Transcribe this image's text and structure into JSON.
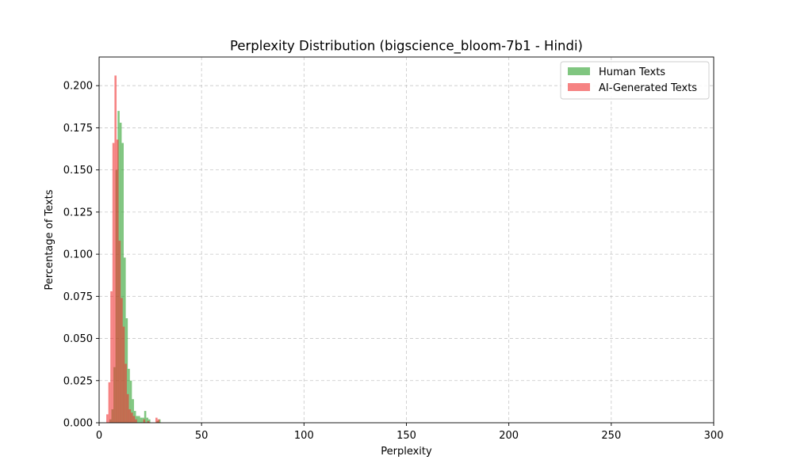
{
  "chart_data": {
    "type": "bar",
    "title": "Perplexity Distribution (bigscience_bloom-7b1 - Hindi)",
    "xlabel": "Perplexity",
    "ylabel": "Percentage of Texts",
    "xlim": [
      0,
      300
    ],
    "ylim": [
      0,
      0.217
    ],
    "xticks": [
      0,
      50,
      100,
      150,
      200,
      250,
      300
    ],
    "xtick_labels": [
      "0",
      "50",
      "100",
      "150",
      "200",
      "250",
      "300"
    ],
    "yticks": [
      0.0,
      0.025,
      0.05,
      0.075,
      0.1,
      0.125,
      0.15,
      0.175,
      0.2
    ],
    "ytick_labels": [
      "0.000",
      "0.025",
      "0.050",
      "0.075",
      "0.100",
      "0.125",
      "0.150",
      "0.175",
      "0.200"
    ],
    "grid": true,
    "legend_position": "top-right",
    "series": [
      {
        "name": "Human Texts",
        "color": "#2ca02c",
        "alpha": 0.6,
        "bins": [
          {
            "x0": 5.0,
            "x1": 6.0,
            "value": 0.002
          },
          {
            "x0": 6.0,
            "x1": 7.0,
            "value": 0.008
          },
          {
            "x0": 7.0,
            "x1": 8.0,
            "value": 0.033
          },
          {
            "x0": 8.0,
            "x1": 9.0,
            "value": 0.15
          },
          {
            "x0": 9.0,
            "x1": 10.0,
            "value": 0.185
          },
          {
            "x0": 10.0,
            "x1": 11.0,
            "value": 0.178
          },
          {
            "x0": 11.0,
            "x1": 12.0,
            "value": 0.166
          },
          {
            "x0": 12.0,
            "x1": 13.0,
            "value": 0.098
          },
          {
            "x0": 13.0,
            "x1": 14.0,
            "value": 0.062
          },
          {
            "x0": 14.0,
            "x1": 15.0,
            "value": 0.032
          },
          {
            "x0": 15.0,
            "x1": 16.0,
            "value": 0.025
          },
          {
            "x0": 16.0,
            "x1": 17.0,
            "value": 0.014
          },
          {
            "x0": 17.0,
            "x1": 18.0,
            "value": 0.007
          },
          {
            "x0": 18.0,
            "x1": 19.0,
            "value": 0.004
          },
          {
            "x0": 19.0,
            "x1": 20.0,
            "value": 0.004
          },
          {
            "x0": 20.0,
            "x1": 21.0,
            "value": 0.003
          },
          {
            "x0": 21.0,
            "x1": 22.0,
            "value": 0.003
          },
          {
            "x0": 22.0,
            "x1": 23.0,
            "value": 0.007
          },
          {
            "x0": 23.0,
            "x1": 24.0,
            "value": 0.003
          },
          {
            "x0": 24.0,
            "x1": 25.0,
            "value": 0.002
          },
          {
            "x0": 28.0,
            "x1": 29.0,
            "value": 0.001
          },
          {
            "x0": 29.0,
            "x1": 30.0,
            "value": 0.002
          }
        ]
      },
      {
        "name": "AI-Generated Texts",
        "color": "#f03030",
        "alpha": 0.6,
        "bins": [
          {
            "x0": 3.5,
            "x1": 4.5,
            "value": 0.005
          },
          {
            "x0": 4.5,
            "x1": 5.5,
            "value": 0.024
          },
          {
            "x0": 5.5,
            "x1": 6.5,
            "value": 0.078
          },
          {
            "x0": 6.5,
            "x1": 7.5,
            "value": 0.166
          },
          {
            "x0": 7.5,
            "x1": 8.5,
            "value": 0.206
          },
          {
            "x0": 8.5,
            "x1": 9.5,
            "value": 0.168
          },
          {
            "x0": 9.5,
            "x1": 10.5,
            "value": 0.108
          },
          {
            "x0": 10.5,
            "x1": 11.5,
            "value": 0.074
          },
          {
            "x0": 11.5,
            "x1": 12.5,
            "value": 0.057
          },
          {
            "x0": 12.5,
            "x1": 13.5,
            "value": 0.035
          },
          {
            "x0": 13.5,
            "x1": 14.5,
            "value": 0.017
          },
          {
            "x0": 14.5,
            "x1": 15.5,
            "value": 0.008
          },
          {
            "x0": 15.5,
            "x1": 16.5,
            "value": 0.006
          },
          {
            "x0": 16.5,
            "x1": 17.5,
            "value": 0.004
          },
          {
            "x0": 17.5,
            "x1": 18.5,
            "value": 0.002
          },
          {
            "x0": 21.5,
            "x1": 22.5,
            "value": 0.002
          },
          {
            "x0": 23.5,
            "x1": 24.5,
            "value": 0.001
          },
          {
            "x0": 27.5,
            "x1": 28.5,
            "value": 0.003
          },
          {
            "x0": 28.5,
            "x1": 29.5,
            "value": 0.002
          }
        ]
      }
    ]
  }
}
